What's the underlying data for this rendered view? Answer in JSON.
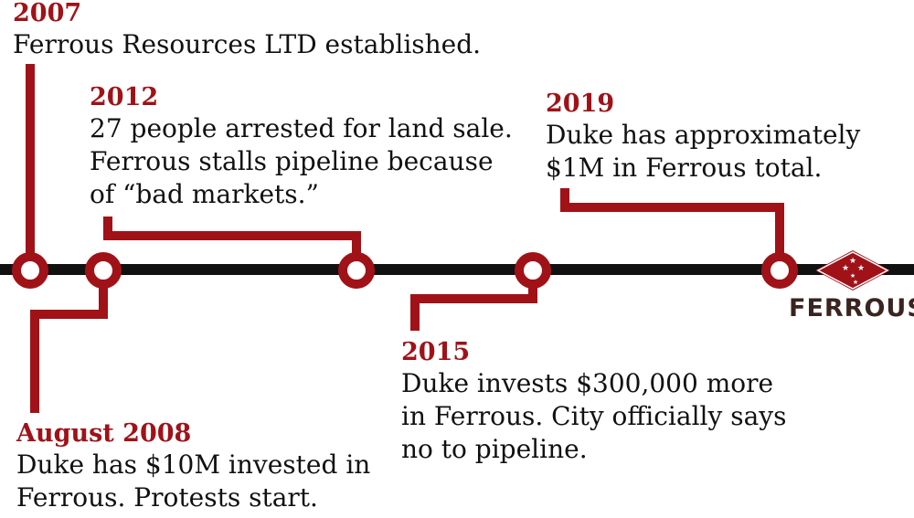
{
  "events": [
    {
      "year": "2007",
      "text": "Ferrous Resources LTD established."
    },
    {
      "year": "2012",
      "text": "27 people arrested for land sale.\nFerrous stalls pipeline because\nof “bad markets.”"
    },
    {
      "year": "2019",
      "text": "Duke has approximately\n$1M in Ferrous total."
    },
    {
      "year": "August 2008",
      "text": "Duke has $10M invested in\nFerrous. Protests start."
    },
    {
      "year": "2015",
      "text": "Duke invests $300,000 more\nin Ferrous. City officially says\nno to pipeline."
    }
  ],
  "brand": {
    "name": "Ferrous",
    "logo_icon": "diamond-stars-logo-icon"
  },
  "colors": {
    "accent": "#a01218",
    "line": "#111111",
    "text": "#111111"
  }
}
